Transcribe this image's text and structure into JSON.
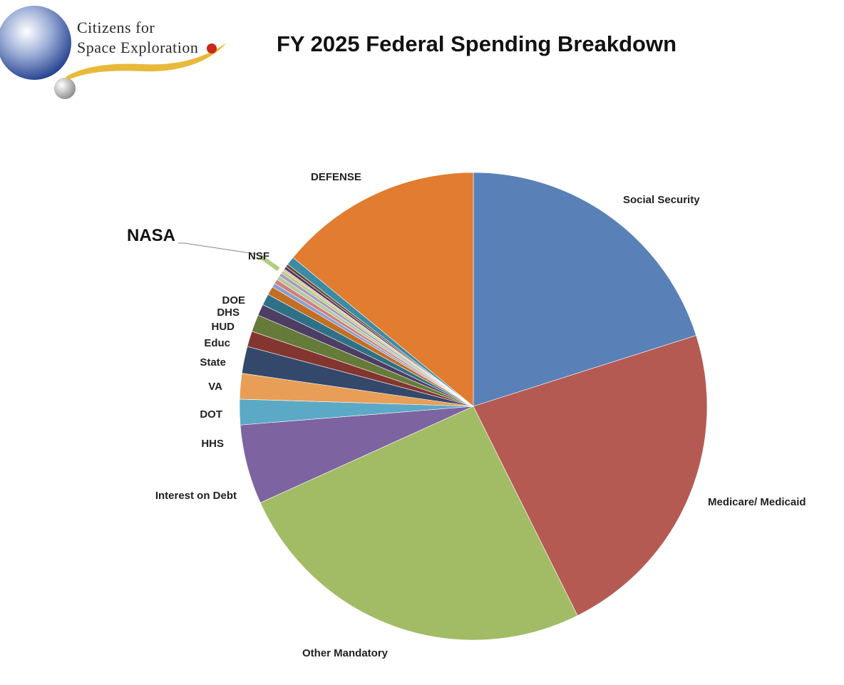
{
  "logo": {
    "line1": "Citizens for",
    "line2": "Space Exploration"
  },
  "chart_data": {
    "type": "pie",
    "title": "FY 2025 Federal Spending Breakdown",
    "unit": "percent of total",
    "start_angle_deg": 0,
    "direction": "clockwise",
    "slices": [
      {
        "label": "Social Security",
        "value": 20.5,
        "color": "#5a80b8"
      },
      {
        "label": "Medicare/ Medicaid",
        "value": 23.0,
        "color": "#b55a52"
      },
      {
        "label": "Other Mandatory",
        "value": 26.1,
        "color": "#a2bc65"
      },
      {
        "label": "Interest on Debt",
        "value": 5.6,
        "color": "#7d64a0"
      },
      {
        "label": "HHS",
        "value": 1.8,
        "color": "#5ba9c6"
      },
      {
        "label": "DOT",
        "value": 1.8,
        "color": "#e89e56"
      },
      {
        "label": "VA",
        "value": 1.9,
        "color": "#34486c"
      },
      {
        "label": "State",
        "value": 1.1,
        "color": "#833530"
      },
      {
        "label": "Educ",
        "value": 1.2,
        "color": "#667a3a"
      },
      {
        "label": "HUD",
        "value": 0.8,
        "color": "#4d3d63"
      },
      {
        "label": "DHS",
        "value": 0.8,
        "color": "#2e7187"
      },
      {
        "label": "DOE",
        "value": 0.6,
        "color": "#c26f24"
      },
      {
        "label": "",
        "value": 0.3,
        "color": "#8aa0cf"
      },
      {
        "label": "",
        "value": 0.3,
        "color": "#d17f7b"
      },
      {
        "label": "",
        "value": 0.3,
        "color": "#b5c9a0"
      },
      {
        "label": "",
        "value": 0.25,
        "color": "#a99abd"
      },
      {
        "label": "NASA",
        "value": 0.2,
        "color": "#b2cc82"
      },
      {
        "label": "",
        "value": 0.15,
        "color": "#e8b99a"
      },
      {
        "label": "NSF",
        "value": 0.2,
        "color": "#4a3a60"
      },
      {
        "label": "",
        "value": 0.2,
        "color": "#6d4a33"
      },
      {
        "label": "",
        "value": 0.6,
        "color": "#3d8aa3"
      },
      {
        "label": "DEFENSE",
        "value": 14.3,
        "color": "#e17c30"
      }
    ]
  }
}
